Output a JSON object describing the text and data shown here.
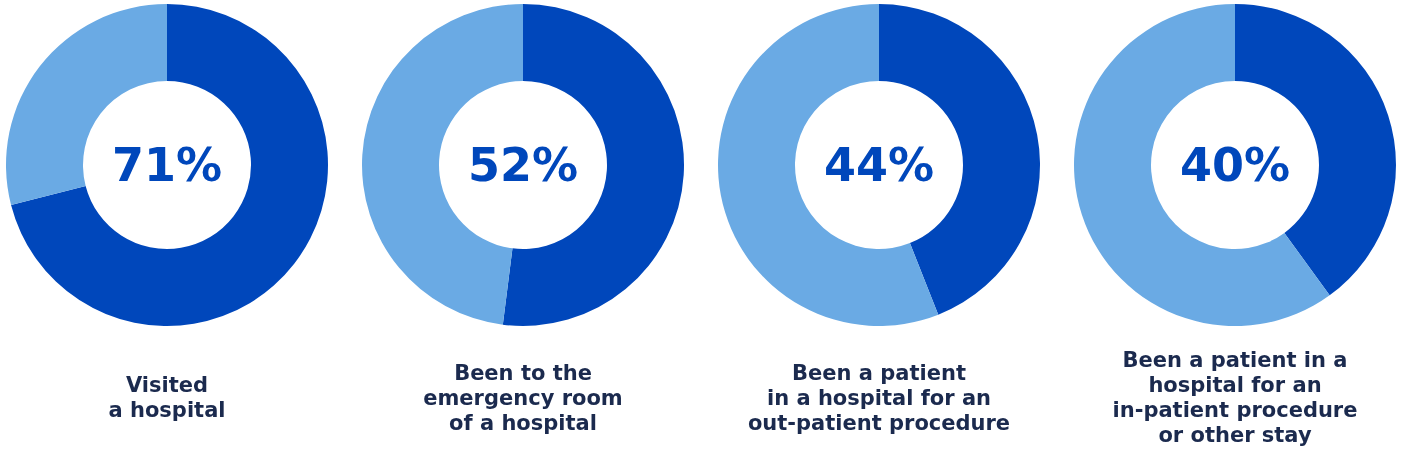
{
  "chart_data": [
    {
      "type": "donut",
      "title": "Visited\na hospital",
      "categories": [
        null,
        null
      ],
      "values": [
        71,
        29
      ],
      "colors": [
        "#0047bb",
        "#6aaae4"
      ],
      "annotations": [
        "71%"
      ],
      "legend": false
    },
    {
      "type": "donut",
      "title": "Been to the\nemergency room\nof a hospital",
      "categories": [
        null,
        null
      ],
      "values": [
        52,
        48
      ],
      "colors": [
        "#0047bb",
        "#6aaae4"
      ],
      "annotations": [
        "52%"
      ],
      "legend": false
    },
    {
      "type": "donut",
      "title": "Been a patient\nin a hospital for an\nout-patient procedure",
      "categories": [
        null,
        null
      ],
      "values": [
        44,
        56
      ],
      "colors": [
        "#0047bb",
        "#6aaae4"
      ],
      "annotations": [
        "44%"
      ],
      "legend": false
    },
    {
      "type": "donut",
      "title": "Been a patient in a\nhospital for an\nin-patient procedure\nor other stay",
      "categories": [
        null,
        null
      ],
      "values": [
        40,
        60
      ],
      "colors": [
        "#0047bb",
        "#6aaae4"
      ],
      "annotations": [
        "40%"
      ],
      "legend": false
    }
  ]
}
